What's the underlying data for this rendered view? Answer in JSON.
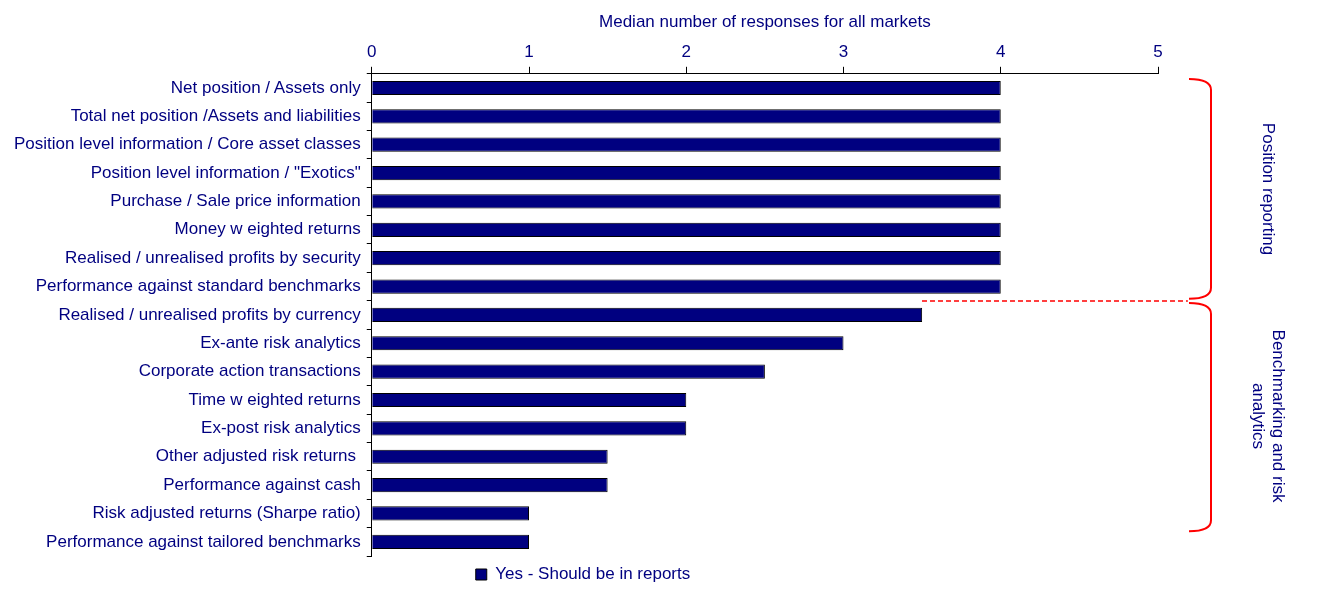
{
  "chart_data": {
    "type": "bar",
    "orientation": "horizontal",
    "xlabel": "Median number of responses for all markets",
    "categories": [
      "Net position / Assets only",
      "Total net position /Assets and liabilities",
      "Position level information / Core asset classes",
      "Position level information / \"Exotics\"",
      "Purchase / Sale price information",
      "Money w eighted returns",
      "Realised / unrealised profits by security",
      "Performance against standard benchmarks",
      "Realised / unrealised profits by currency",
      "Ex-ante risk analytics",
      "Corporate action transactions",
      "Time w eighted returns",
      "Ex-post risk analytics",
      "Other adjusted risk returns ",
      "Performance against cash",
      "Risk adjusted returns (Sharpe ratio)",
      "Performance against tailored benchmarks"
    ],
    "series": [
      {
        "name": "Yes - Should be in reports",
        "color": "#000080",
        "values": [
          4,
          4,
          4,
          4,
          4,
          4,
          4,
          4,
          3.5,
          3,
          2.5,
          2,
          2,
          1.5,
          1.5,
          1,
          1
        ]
      }
    ],
    "xlim": [
      0,
      5
    ],
    "xticks": [
      0,
      1,
      2,
      3,
      4,
      5
    ],
    "grid": false,
    "legend": "bottom",
    "annotations": [
      "Position reporting",
      "Benchmarking and risk analytics"
    ]
  }
}
